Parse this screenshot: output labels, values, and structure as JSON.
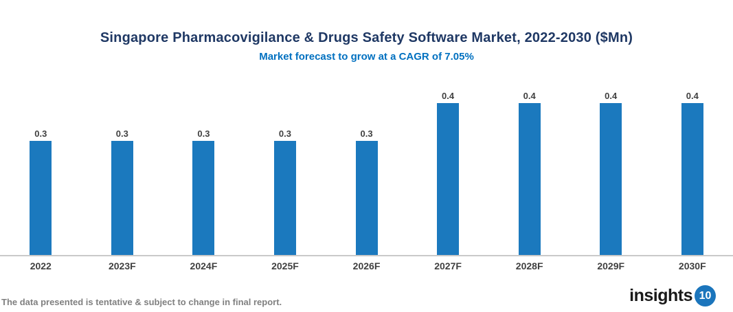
{
  "header": {
    "title": "Singapore Pharmacovigilance & Drugs Safety Software Market, 2022-2030 ($Mn)",
    "subtitle": "Market forecast to grow at a CAGR of 7.05%"
  },
  "chart_data": {
    "type": "bar",
    "title": "Singapore Pharmacovigilance & Drugs Safety Software Market, 2022-2030 ($Mn)",
    "subtitle": "Market forecast to grow at a CAGR of 7.05%",
    "categories": [
      "2022",
      "2023F",
      "2024F",
      "2025F",
      "2026F",
      "2027F",
      "2028F",
      "2029F",
      "2030F"
    ],
    "values": [
      0.3,
      0.3,
      0.3,
      0.3,
      0.3,
      0.4,
      0.4,
      0.4,
      0.4
    ],
    "value_labels": [
      "0.3",
      "0.3",
      "0.3",
      "0.3",
      "0.3",
      "0.4",
      "0.4",
      "0.4",
      "0.4"
    ],
    "xlabel": "",
    "ylabel": "",
    "ylim": [
      0,
      0.49
    ],
    "grid": false,
    "legend": "none",
    "y_axis_visible": false,
    "bar_color": "#1B79BE"
  },
  "colors": {
    "title": "#1F3864",
    "subtitle": "#0070C0",
    "bar": "#1B79BE",
    "value_label": "#404040",
    "x_label": "#404040",
    "axis_line": "#C9C9C9",
    "footer": "#808080",
    "logo_text": "#1A1A1A",
    "logo_circle": "#1B75BC"
  },
  "footer": {
    "note": "The data presented is tentative & subject to change in final report.",
    "logo_text": "insights",
    "logo_badge": "10"
  }
}
